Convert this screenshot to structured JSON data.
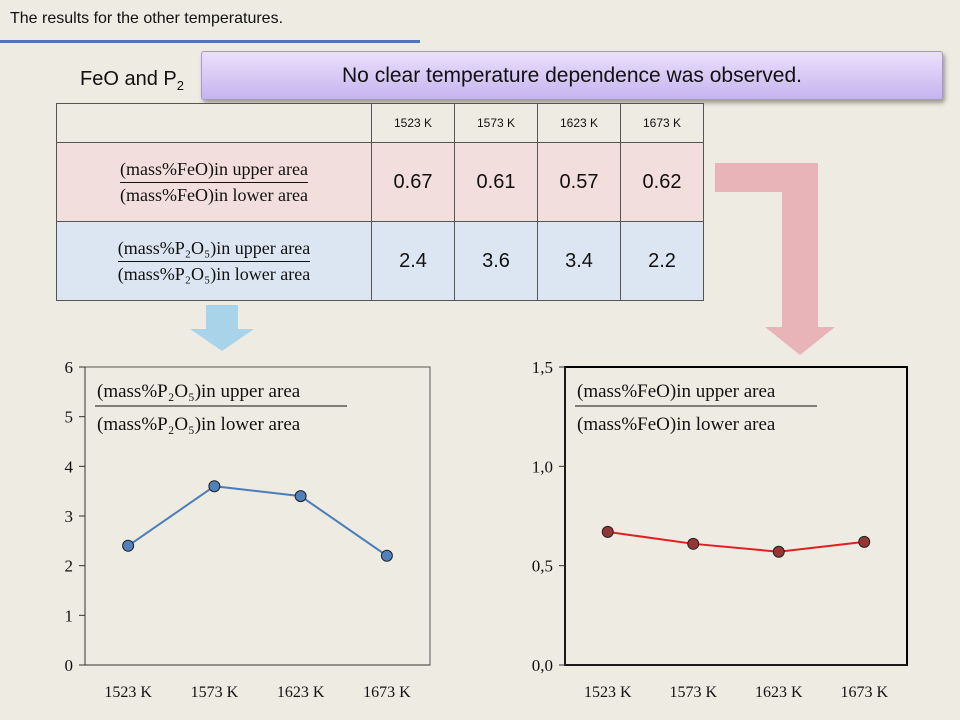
{
  "header": {
    "title": "The results for the other temperatures."
  },
  "subtitle": {
    "text": "FeO and P",
    "sub": "2"
  },
  "callout": {
    "text": "No clear temperature dependence was observed."
  },
  "table": {
    "headers": [
      "1523 K",
      "1573 K",
      "1623 K",
      "1673 K"
    ],
    "rows": [
      {
        "label_top": "(mass%FeO)in upper area",
        "label_bottom": "(mass%FeO)in lower area",
        "values": [
          "0.67",
          "0.61",
          "0.57",
          "0.62"
        ]
      },
      {
        "label_top": "(mass%P₂O₅)in upper area",
        "label_bottom": "(mass%P₂O₅)in lower area",
        "values": [
          "2.4",
          "3.6",
          "3.4",
          "2.2"
        ]
      }
    ]
  },
  "colors": {
    "feo_row": "#f3dede",
    "p2o5_row": "#dce6f2",
    "down_arrow_blue": "#a9d3e8",
    "elbow_arrow_pink": "#e8b4b8",
    "p2o5_series": "#4a7ebb",
    "p2o5_marker": "#4f81bd",
    "feo_series": "#e02020",
    "feo_marker": "#943634"
  },
  "chart_data": [
    {
      "type": "line",
      "categories": [
        "1523 K",
        "1573 K",
        "1623 K",
        "1673 K"
      ],
      "values": [
        2.4,
        3.6,
        3.4,
        2.2
      ],
      "ylim": [
        0,
        6
      ],
      "yticks": [
        "0",
        "1",
        "2",
        "3",
        "4",
        "5",
        "6"
      ],
      "annotation_top": "(mass%P₂O₅)in upper area",
      "annotation_bottom": "(mass%P₂O₅)in lower area",
      "grid": false
    },
    {
      "type": "line",
      "categories": [
        "1523 K",
        "1573 K",
        "1623 K",
        "1673 K"
      ],
      "values": [
        0.67,
        0.61,
        0.57,
        0.62
      ],
      "ylim": [
        0,
        1.5
      ],
      "yticks": [
        "0,0",
        "0,5",
        "1,0",
        "1,5"
      ],
      "annotation_top": "(mass%FeO)in upper area",
      "annotation_bottom": "(mass%FeO)in lower area",
      "grid": false
    }
  ]
}
